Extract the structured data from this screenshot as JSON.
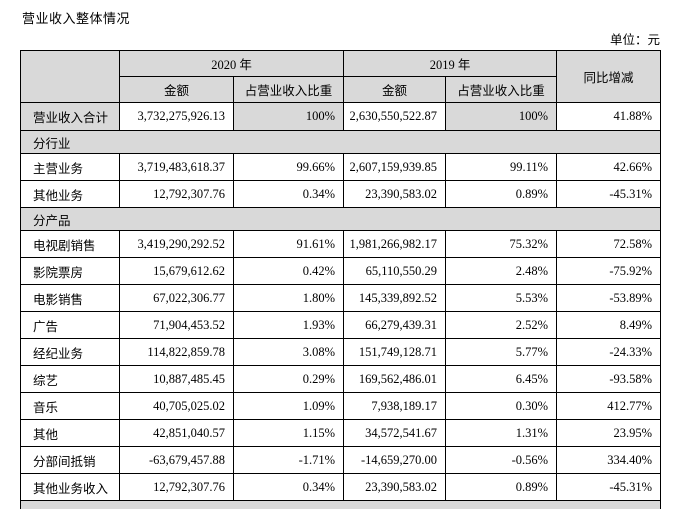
{
  "page": {
    "title": "营业收入整体情况",
    "unit_label": "单位：元"
  },
  "table": {
    "header": {
      "year_2020": "2020 年",
      "year_2019": "2019 年",
      "amount": "金额",
      "pct_of_revenue": "占营业收入比重",
      "yoy_change": "同比增减"
    },
    "rows": [
      {
        "type": "summary",
        "label": "营业收入合计",
        "a2020": "3,732,275,926.13",
        "p2020": "100%",
        "a2019": "2,630,550,522.87",
        "p2019": "100%",
        "yoy": "41.88%"
      },
      {
        "type": "section",
        "label": "分行业"
      },
      {
        "type": "data",
        "label": "主营业务",
        "a2020": "3,719,483,618.37",
        "p2020": "99.66%",
        "a2019": "2,607,159,939.85",
        "p2019": "99.11%",
        "yoy": "42.66%"
      },
      {
        "type": "data",
        "label": "其他业务",
        "a2020": "12,792,307.76",
        "p2020": "0.34%",
        "a2019": "23,390,583.02",
        "p2019": "0.89%",
        "yoy": "-45.31%"
      },
      {
        "type": "section",
        "label": "分产品"
      },
      {
        "type": "data",
        "label": "电视剧销售",
        "a2020": "3,419,290,292.52",
        "p2020": "91.61%",
        "a2019": "1,981,266,982.17",
        "p2019": "75.32%",
        "yoy": "72.58%"
      },
      {
        "type": "data",
        "label": "影院票房",
        "a2020": "15,679,612.62",
        "p2020": "0.42%",
        "a2019": "65,110,550.29",
        "p2019": "2.48%",
        "yoy": "-75.92%"
      },
      {
        "type": "data",
        "label": "电影销售",
        "a2020": "67,022,306.77",
        "p2020": "1.80%",
        "a2019": "145,339,892.52",
        "p2019": "5.53%",
        "yoy": "-53.89%"
      },
      {
        "type": "data",
        "label": "广告",
        "a2020": "71,904,453.52",
        "p2020": "1.93%",
        "a2019": "66,279,439.31",
        "p2019": "2.52%",
        "yoy": "8.49%"
      },
      {
        "type": "data",
        "label": "经纪业务",
        "a2020": "114,822,859.78",
        "p2020": "3.08%",
        "a2019": "151,749,128.71",
        "p2019": "5.77%",
        "yoy": "-24.33%"
      },
      {
        "type": "data",
        "label": "综艺",
        "a2020": "10,887,485.45",
        "p2020": "0.29%",
        "a2019": "169,562,486.01",
        "p2019": "6.45%",
        "yoy": "-93.58%"
      },
      {
        "type": "data",
        "label": "音乐",
        "a2020": "40,705,025.02",
        "p2020": "1.09%",
        "a2019": "7,938,189.17",
        "p2019": "0.30%",
        "yoy": "412.77%"
      },
      {
        "type": "data",
        "label": "其他",
        "a2020": "42,851,040.57",
        "p2020": "1.15%",
        "a2019": "34,572,541.67",
        "p2019": "1.31%",
        "yoy": "23.95%"
      },
      {
        "type": "data",
        "label": "分部间抵销",
        "a2020": "-63,679,457.88",
        "p2020": "-1.71%",
        "a2019": "-14,659,270.00",
        "p2019": "-0.56%",
        "yoy": "334.40%"
      },
      {
        "type": "data",
        "label": "其他业务收入",
        "a2020": "12,792,307.76",
        "p2020": "0.34%",
        "a2019": "23,390,583.02",
        "p2019": "0.89%",
        "yoy": "-45.31%"
      },
      {
        "type": "partial",
        "label": ""
      }
    ]
  }
}
